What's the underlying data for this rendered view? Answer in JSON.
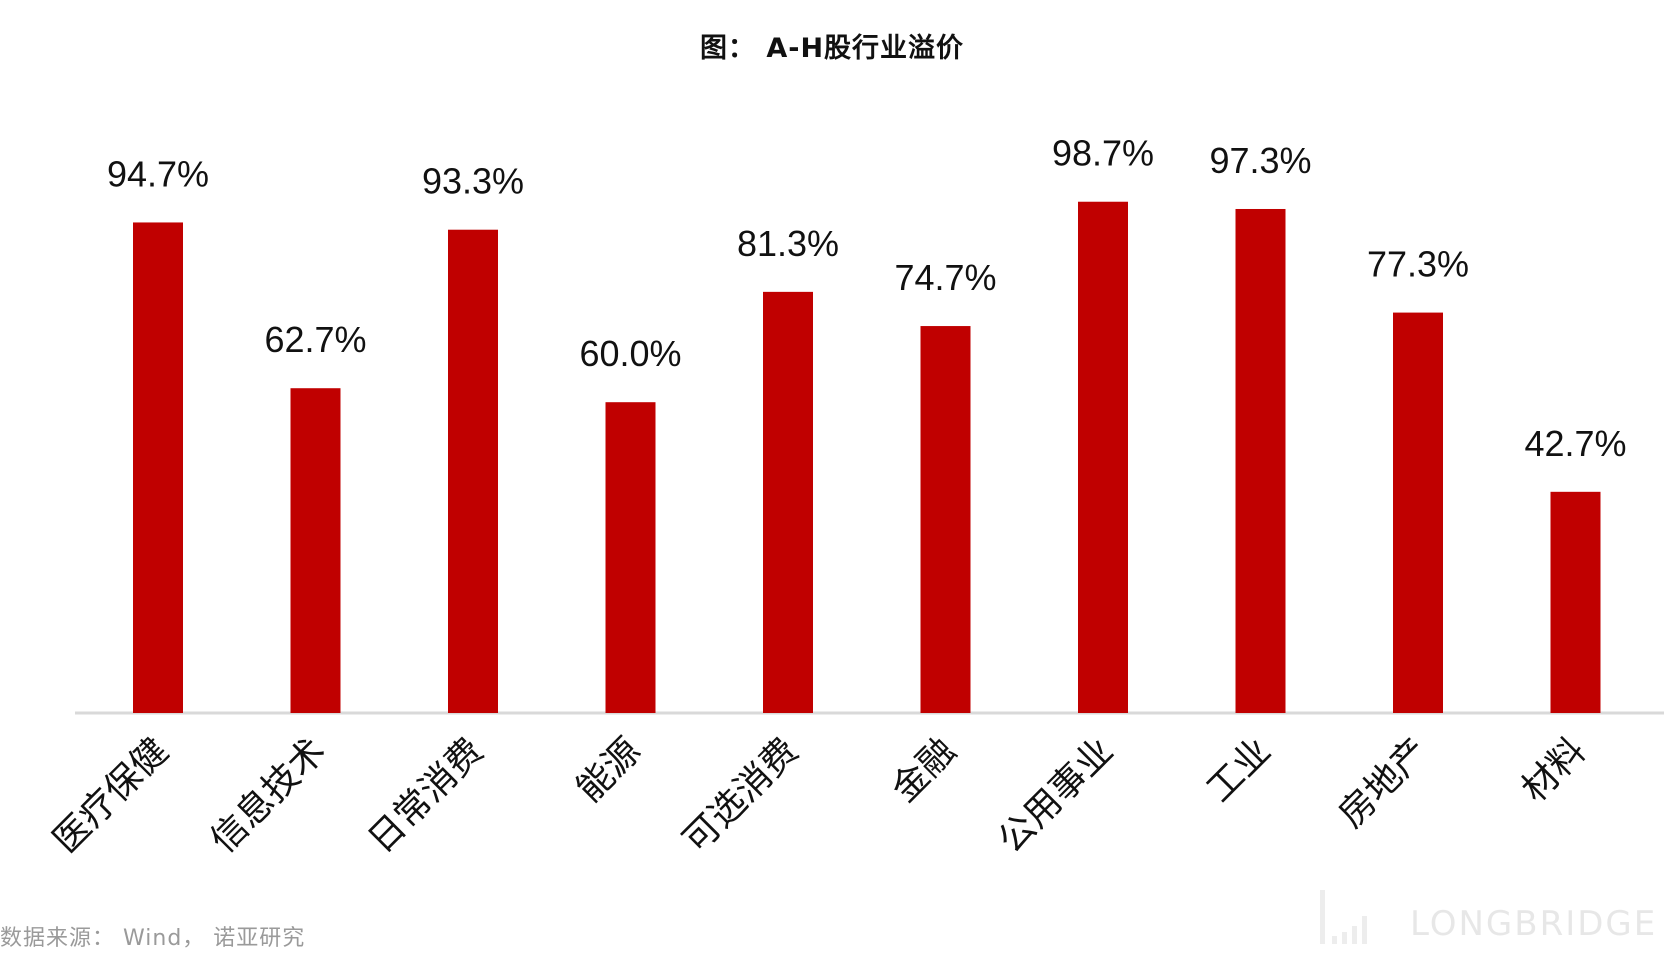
{
  "chart_data": {
    "type": "bar",
    "title": "图： A-H股行业溢价",
    "categories": [
      "医疗保健",
      "信息技术",
      "日常消费",
      "能源",
      "可选消费",
      "金融",
      "公用事业",
      "工业",
      "房地产",
      "材料"
    ],
    "values": [
      94.7,
      62.7,
      93.3,
      60.0,
      81.3,
      74.7,
      98.7,
      97.3,
      77.3,
      42.7
    ],
    "data_labels": [
      "94.7%",
      "62.7%",
      "93.3%",
      "60.0%",
      "81.3%",
      "74.7%",
      "98.7%",
      "97.3%",
      "77.3%",
      "42.7%"
    ],
    "ylim": [
      0,
      100
    ],
    "grid": false,
    "legend": "none",
    "bar_color": "#c00000",
    "axis_color": "#d9d9d9"
  },
  "source_note": "数据来源： Wind， 诺亚研究",
  "watermark": {
    "text": "LONGBRIDGE",
    "icon": "bar-chart-logo-icon"
  }
}
